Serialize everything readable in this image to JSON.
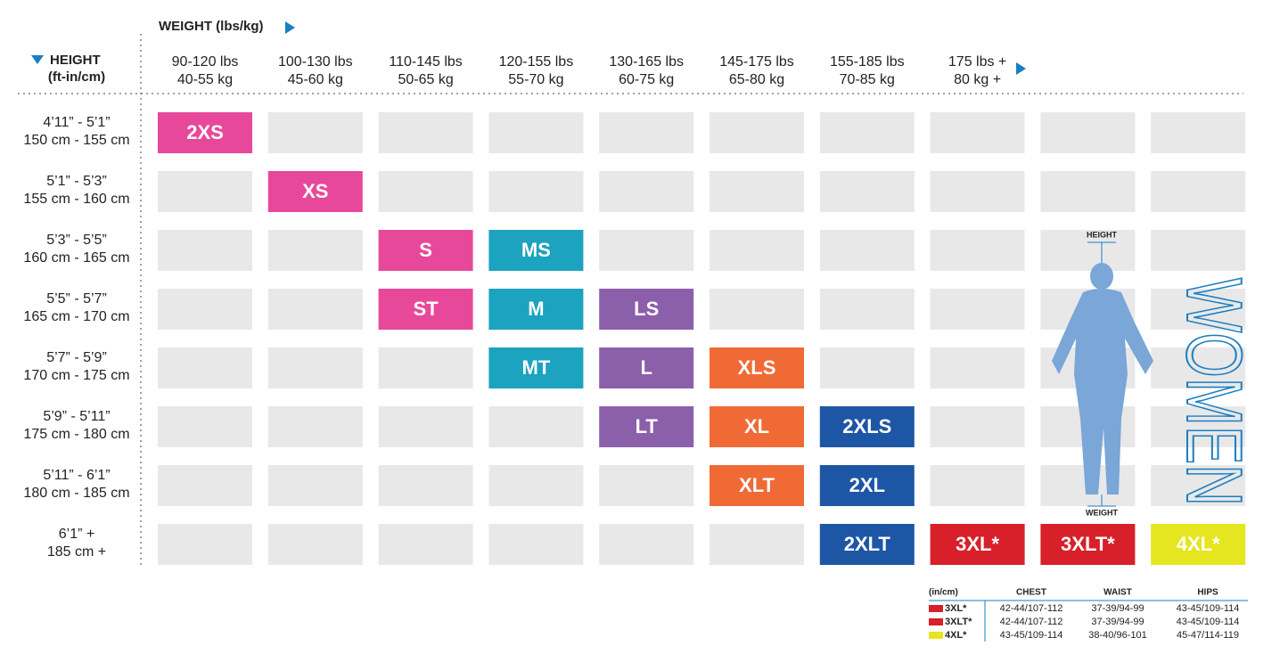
{
  "header": {
    "weight_title": "WEIGHT (lbs/kg)",
    "height_title": "HEIGHT",
    "height_units": "(ft-in/cm)"
  },
  "weight_columns": [
    {
      "lbs": "90-120 lbs",
      "kg": "40-55 kg"
    },
    {
      "lbs": "100-130 lbs",
      "kg": "45-60 kg"
    },
    {
      "lbs": "110-145 lbs",
      "kg": "50-65 kg"
    },
    {
      "lbs": "120-155 lbs",
      "kg": "55-70 kg"
    },
    {
      "lbs": "130-165 lbs",
      "kg": "60-75 kg"
    },
    {
      "lbs": "145-175 lbs",
      "kg": "65-80 kg"
    },
    {
      "lbs": "155-185 lbs",
      "kg": "70-85 kg"
    },
    {
      "lbs": "175 lbs +",
      "kg": "80 kg +"
    }
  ],
  "rows": [
    {
      "height_ft": "4’11” - 5’1”",
      "height_cm": "150 cm - 155 cm",
      "cells": [
        {
          "label": "2XS",
          "color": "#e8489a"
        },
        null,
        null,
        null,
        null,
        null,
        null,
        null,
        null,
        null
      ]
    },
    {
      "height_ft": "5’1” - 5’3”",
      "height_cm": "155 cm - 160 cm",
      "cells": [
        null,
        {
          "label": "XS",
          "color": "#e8489a"
        },
        null,
        null,
        null,
        null,
        null,
        null,
        null,
        null
      ]
    },
    {
      "height_ft": "5’3” - 5’5”",
      "height_cm": "160 cm - 165 cm",
      "cells": [
        null,
        null,
        {
          "label": "S",
          "color": "#e8489a"
        },
        {
          "label": "MS",
          "color": "#1ba3bf"
        },
        null,
        null,
        null,
        null,
        null,
        null
      ]
    },
    {
      "height_ft": "5’5” - 5’7”",
      "height_cm": "165 cm - 170 cm",
      "cells": [
        null,
        null,
        {
          "label": "ST",
          "color": "#e8489a"
        },
        {
          "label": "M",
          "color": "#1ba3bf"
        },
        {
          "label": "LS",
          "color": "#8c5fab"
        },
        null,
        null,
        null,
        null,
        null
      ]
    },
    {
      "height_ft": "5’7” - 5’9”",
      "height_cm": "170 cm - 175 cm",
      "cells": [
        null,
        null,
        null,
        {
          "label": "MT",
          "color": "#1ba3bf"
        },
        {
          "label": "L",
          "color": "#8c5fab"
        },
        {
          "label": "XLS",
          "color": "#f06a35"
        },
        null,
        null,
        null,
        null
      ]
    },
    {
      "height_ft": "5’9” - 5’11”",
      "height_cm": "175 cm - 180 cm",
      "cells": [
        null,
        null,
        null,
        null,
        {
          "label": "LT",
          "color": "#8c5fab"
        },
        {
          "label": "XL",
          "color": "#f06a35"
        },
        {
          "label": "2XLS",
          "color": "#1e56a6"
        },
        null,
        null,
        null
      ]
    },
    {
      "height_ft": "5’11” - 6’1”",
      "height_cm": "180 cm - 185 cm",
      "cells": [
        null,
        null,
        null,
        null,
        null,
        {
          "label": "XLT",
          "color": "#f06a35"
        },
        {
          "label": "2XL",
          "color": "#1e56a6"
        },
        null,
        null,
        null
      ]
    },
    {
      "height_ft": "6’1” +",
      "height_cm": "185 cm +",
      "cells": [
        null,
        null,
        null,
        null,
        null,
        null,
        {
          "label": "2XLT",
          "color": "#1e56a6"
        },
        {
          "label": "3XL*",
          "color": "#d7202a"
        },
        {
          "label": "3XLT*",
          "color": "#d7202a"
        },
        {
          "label": "4XL*",
          "color": "#e5e520"
        }
      ]
    }
  ],
  "figure": {
    "height_label": "HEIGHT",
    "weight_label": "WEIGHT",
    "title": "WOMEN"
  },
  "footnote_table": {
    "header": [
      "(in/cm)",
      "CHEST",
      "WAIST",
      "HIPS"
    ],
    "rows": [
      {
        "color": "#d7202a",
        "cells": [
          "3XL*",
          "42-44/107-112",
          "37-39/94-99",
          "43-45/109-114"
        ]
      },
      {
        "color": "#d7202a",
        "cells": [
          "3XLT*",
          "42-44/107-112",
          "37-39/94-99",
          "43-45/109-114"
        ]
      },
      {
        "color": "#e5e520",
        "cells": [
          "4XL*",
          "43-45/109-114",
          "38-40/96-101",
          "45-47/114-119"
        ]
      }
    ]
  }
}
